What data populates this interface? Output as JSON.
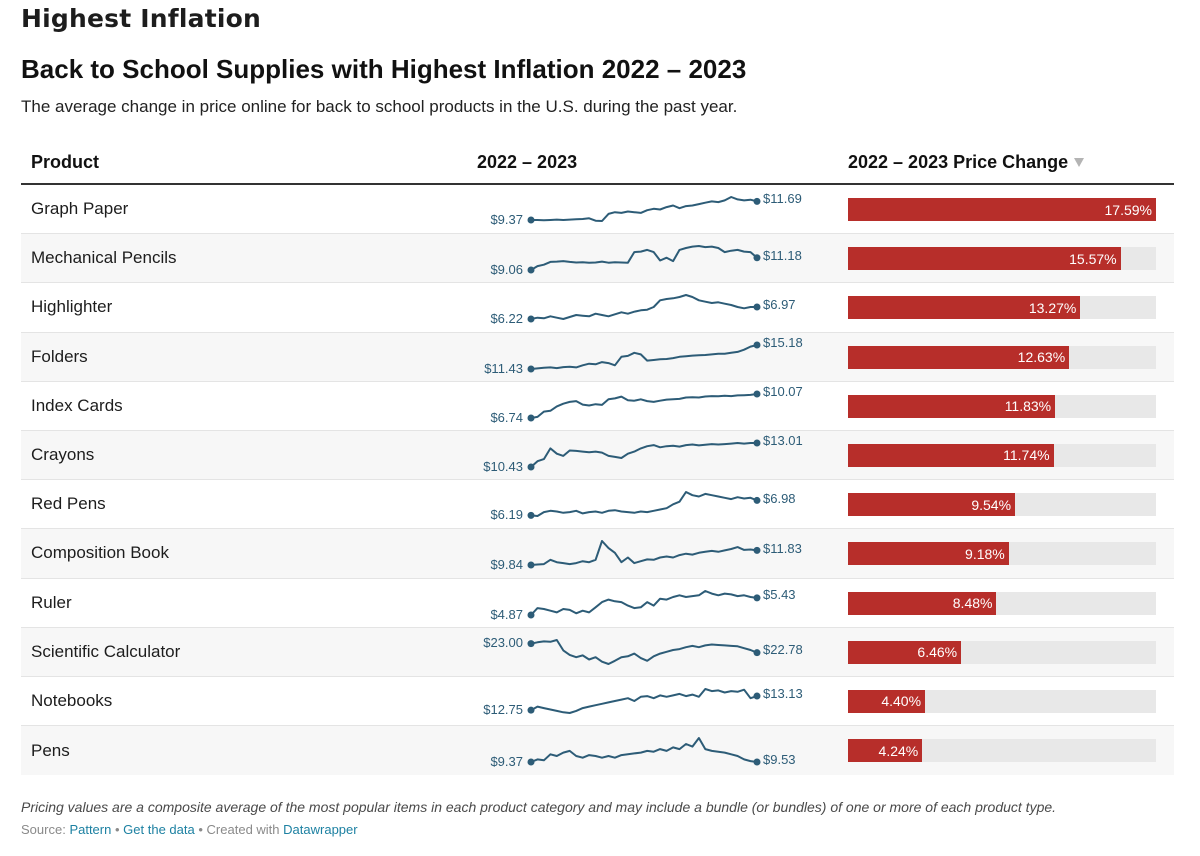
{
  "headline": "Highest Inflation",
  "title": "Back to School Supplies with Highest Inflation 2022 – 2023",
  "subtitle": "The average change in price online for back to school products in the U.S. during the past year.",
  "columns": {
    "product": "Product",
    "sparkline": "2022 – 2023",
    "change": "2022 – 2023 Price Change",
    "sort_icon": "sort-descending-icon"
  },
  "colors": {
    "bar": "#b72e2a",
    "track": "#e8e8e8",
    "sparkline": "#2d5c77"
  },
  "chart_data": {
    "type": "table",
    "title": "Back to School Supplies with Highest Inflation 2022 – 2023",
    "bar_max_percent": 17.59,
    "rows": [
      {
        "product": "Graph Paper",
        "start": "$9.37",
        "end": "$11.69",
        "change": 17.59,
        "change_label": "17.59%",
        "trend": [
          9.37,
          9.37,
          9.36,
          9.37,
          9.38,
          9.37,
          9.38,
          9.39,
          9.4,
          9.42,
          9.35,
          9.34,
          9.55,
          9.6,
          9.58,
          9.62,
          9.6,
          9.58,
          9.66,
          9.7,
          9.68,
          9.75,
          9.8,
          9.72,
          9.78,
          9.8,
          9.84,
          9.88,
          9.92,
          9.9,
          9.95,
          10.05,
          9.98,
          9.95,
          9.97,
          9.92
        ]
      },
      {
        "product": "Mechanical Pencils",
        "start": "$9.06",
        "end": "$11.18",
        "change": 15.57,
        "change_label": "15.57%",
        "trend": [
          9.06,
          9.2,
          9.25,
          9.35,
          9.36,
          9.38,
          9.35,
          9.33,
          9.34,
          9.32,
          9.33,
          9.36,
          9.32,
          9.34,
          9.33,
          9.32,
          9.7,
          9.72,
          9.78,
          9.7,
          9.4,
          9.5,
          9.38,
          9.78,
          9.85,
          9.9,
          9.92,
          9.88,
          9.9,
          9.85,
          9.7,
          9.75,
          9.78,
          9.72,
          9.7,
          9.5
        ]
      },
      {
        "product": "Highlighter",
        "start": "$6.22",
        "end": "$6.97",
        "change": 13.27,
        "change_label": "13.27%",
        "trend": [
          6.22,
          6.24,
          6.23,
          6.26,
          6.24,
          6.22,
          6.25,
          6.28,
          6.27,
          6.26,
          6.3,
          6.28,
          6.26,
          6.29,
          6.32,
          6.3,
          6.33,
          6.35,
          6.36,
          6.4,
          6.5,
          6.52,
          6.53,
          6.55,
          6.58,
          6.55,
          6.5,
          6.48,
          6.46,
          6.47,
          6.45,
          6.43,
          6.4,
          6.38,
          6.4,
          6.4
        ]
      },
      {
        "product": "Folders",
        "start": "$11.43",
        "end": "$15.18",
        "change": 12.63,
        "change_label": "12.63%",
        "trend": [
          11.43,
          11.45,
          11.47,
          11.48,
          11.46,
          11.49,
          11.5,
          11.48,
          11.55,
          11.6,
          11.58,
          11.65,
          11.62,
          11.55,
          11.82,
          11.85,
          11.95,
          11.9,
          11.7,
          11.72,
          11.74,
          11.75,
          11.78,
          11.82,
          11.84,
          11.86,
          11.87,
          11.88,
          11.9,
          11.92,
          11.92,
          11.95,
          11.98,
          12.05,
          12.15,
          12.2
        ]
      },
      {
        "product": "Index Cards",
        "start": "$6.74",
        "end": "$10.07",
        "change": 11.83,
        "change_label": "11.83%",
        "trend": [
          6.74,
          6.8,
          7.1,
          7.15,
          7.4,
          7.55,
          7.65,
          7.7,
          7.5,
          7.45,
          7.52,
          7.48,
          7.8,
          7.85,
          7.95,
          7.75,
          7.72,
          7.8,
          7.7,
          7.65,
          7.72,
          7.78,
          7.8,
          7.82,
          7.9,
          7.92,
          7.9,
          7.96,
          7.98,
          7.97,
          8.0,
          7.98,
          8.02,
          8.03,
          8.05,
          8.1
        ]
      },
      {
        "product": "Crayons",
        "start": "$10.43",
        "end": "$13.01",
        "change": 11.74,
        "change_label": "11.74%",
        "trend": [
          10.43,
          10.7,
          10.8,
          11.3,
          11.05,
          10.95,
          11.2,
          11.18,
          11.15,
          11.12,
          11.15,
          11.1,
          10.95,
          10.9,
          10.85,
          11.05,
          11.15,
          11.3,
          11.4,
          11.45,
          11.35,
          11.4,
          11.42,
          11.38,
          11.45,
          11.48,
          11.44,
          11.47,
          11.5,
          11.48,
          11.5,
          11.52,
          11.55,
          11.52,
          11.55,
          11.55
        ]
      },
      {
        "product": "Red Pens",
        "start": "$6.19",
        "end": "$6.98",
        "change": 9.54,
        "change_label": "9.54%",
        "trend": [
          6.19,
          6.18,
          6.24,
          6.26,
          6.25,
          6.23,
          6.24,
          6.26,
          6.22,
          6.24,
          6.25,
          6.23,
          6.26,
          6.27,
          6.25,
          6.24,
          6.23,
          6.25,
          6.24,
          6.26,
          6.28,
          6.3,
          6.36,
          6.4,
          6.55,
          6.5,
          6.48,
          6.52,
          6.5,
          6.48,
          6.46,
          6.44,
          6.47,
          6.45,
          6.46,
          6.42
        ]
      },
      {
        "product": "Composition Book",
        "start": "$9.84",
        "end": "$11.83",
        "change": 9.18,
        "change_label": "9.18%",
        "trend": [
          9.84,
          9.85,
          9.86,
          9.95,
          9.9,
          9.88,
          9.86,
          9.88,
          9.92,
          9.9,
          9.95,
          10.35,
          10.2,
          10.1,
          9.9,
          10.0,
          9.88,
          9.92,
          9.96,
          9.95,
          10.0,
          10.02,
          10.0,
          10.05,
          10.08,
          10.06,
          10.1,
          10.12,
          10.14,
          10.12,
          10.15,
          10.18,
          10.22,
          10.16,
          10.17,
          10.15
        ]
      },
      {
        "product": "Ruler",
        "start": "$4.87",
        "end": "$5.43",
        "change": 8.48,
        "change_label": "8.48%",
        "trend": [
          4.87,
          4.95,
          4.94,
          4.92,
          4.9,
          4.94,
          4.93,
          4.89,
          4.92,
          4.9,
          4.96,
          5.02,
          5.05,
          5.03,
          5.02,
          4.98,
          4.95,
          4.96,
          5.02,
          4.98,
          5.06,
          5.05,
          5.08,
          5.1,
          5.08,
          5.09,
          5.1,
          5.15,
          5.12,
          5.1,
          5.12,
          5.11,
          5.09,
          5.1,
          5.08,
          5.07
        ]
      },
      {
        "product": "Scientific Calculator",
        "start": "$23.00",
        "end": "$22.78",
        "change": 6.46,
        "change_label": "6.46%",
        "trend": [
          23.0,
          23.03,
          23.05,
          23.04,
          23.08,
          22.85,
          22.75,
          22.7,
          22.74,
          22.65,
          22.7,
          22.6,
          22.55,
          22.62,
          22.7,
          22.72,
          22.78,
          22.68,
          22.62,
          22.72,
          22.78,
          22.82,
          22.86,
          22.88,
          22.92,
          22.95,
          22.92,
          22.96,
          22.98,
          22.97,
          22.96,
          22.95,
          22.94,
          22.9,
          22.86,
          22.8
        ]
      },
      {
        "product": "Notebooks",
        "start": "$12.75",
        "end": "$13.13",
        "change": 4.4,
        "change_label": "4.40%",
        "trend": [
          12.75,
          12.8,
          12.78,
          12.76,
          12.74,
          12.72,
          12.71,
          12.74,
          12.78,
          12.8,
          12.82,
          12.84,
          12.86,
          12.88,
          12.9,
          12.92,
          12.88,
          12.94,
          12.95,
          12.92,
          12.96,
          12.94,
          12.96,
          12.98,
          12.95,
          12.97,
          12.94,
          13.05,
          13.02,
          13.03,
          13.0,
          13.02,
          13.01,
          13.04,
          12.92,
          12.95
        ]
      },
      {
        "product": "Pens",
        "start": "$9.37",
        "end": "$9.53",
        "change": 4.24,
        "change_label": "4.24%",
        "trend": [
          9.37,
          9.4,
          9.39,
          9.46,
          9.44,
          9.48,
          9.5,
          9.44,
          9.42,
          9.45,
          9.44,
          9.42,
          9.44,
          9.42,
          9.45,
          9.46,
          9.47,
          9.48,
          9.5,
          9.49,
          9.52,
          9.5,
          9.54,
          9.52,
          9.58,
          9.55,
          9.65,
          9.52,
          9.5,
          9.49,
          9.48,
          9.46,
          9.44,
          9.4,
          9.38,
          9.37
        ]
      }
    ]
  },
  "footer": {
    "notes": "Pricing values are a composite average of the most popular items in each product category and may include a bundle (or bundles) of one or more of each product type.",
    "source_label": "Source:",
    "source_link": "Pattern",
    "separator": "•",
    "data_link": "Get the data",
    "created_with": "Created with",
    "tool_link": "Datawrapper"
  }
}
